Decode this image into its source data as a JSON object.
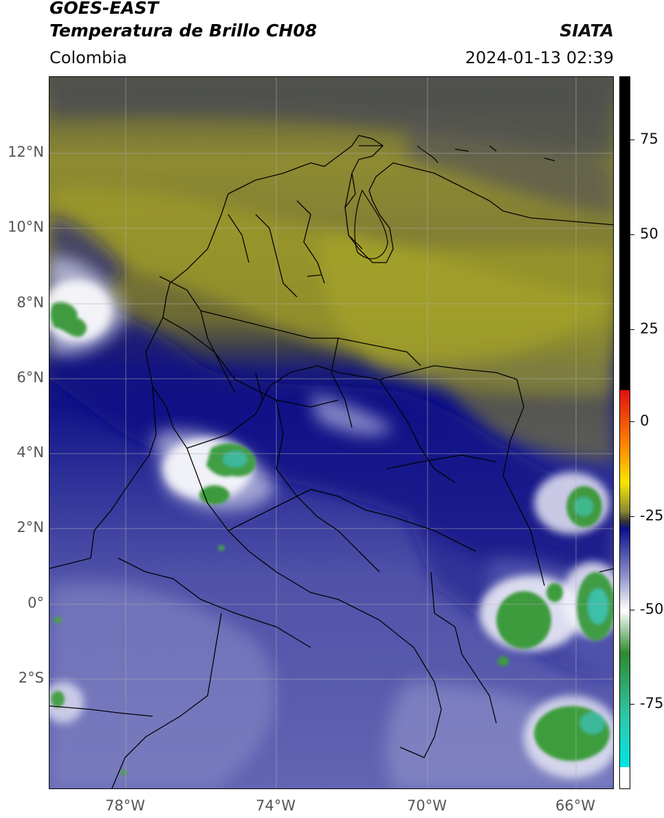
{
  "header": {
    "title_line1": "GOES-EAST",
    "title_line2": "Temperatura de Brillo CH08",
    "brand": "SIATA",
    "region": "Colombia",
    "timestamp": "2024-01-13 02:39"
  },
  "map": {
    "lat_labels": [
      "12°N",
      "10°N",
      "8°N",
      "6°N",
      "4°N",
      "2°N",
      "0°",
      "2°S"
    ],
    "lon_labels": [
      "78°W",
      "74°W",
      "70°W",
      "66°W"
    ]
  },
  "colorbar": {
    "tick_labels": [
      "75",
      "50",
      "25",
      "0",
      "-25",
      "-50",
      "-75"
    ],
    "colors": {
      "black": "#000000",
      "red": "#e01010",
      "orange": "#ff8a00",
      "yellow": "#f7e600",
      "olive": "#8d8a34",
      "navy": "#0c108a",
      "lavender": "#8c8ec8",
      "white": "#ffffff",
      "green": "#2e8a2e",
      "teal": "#2fc7a8",
      "cyan": "#00e5e5"
    }
  }
}
